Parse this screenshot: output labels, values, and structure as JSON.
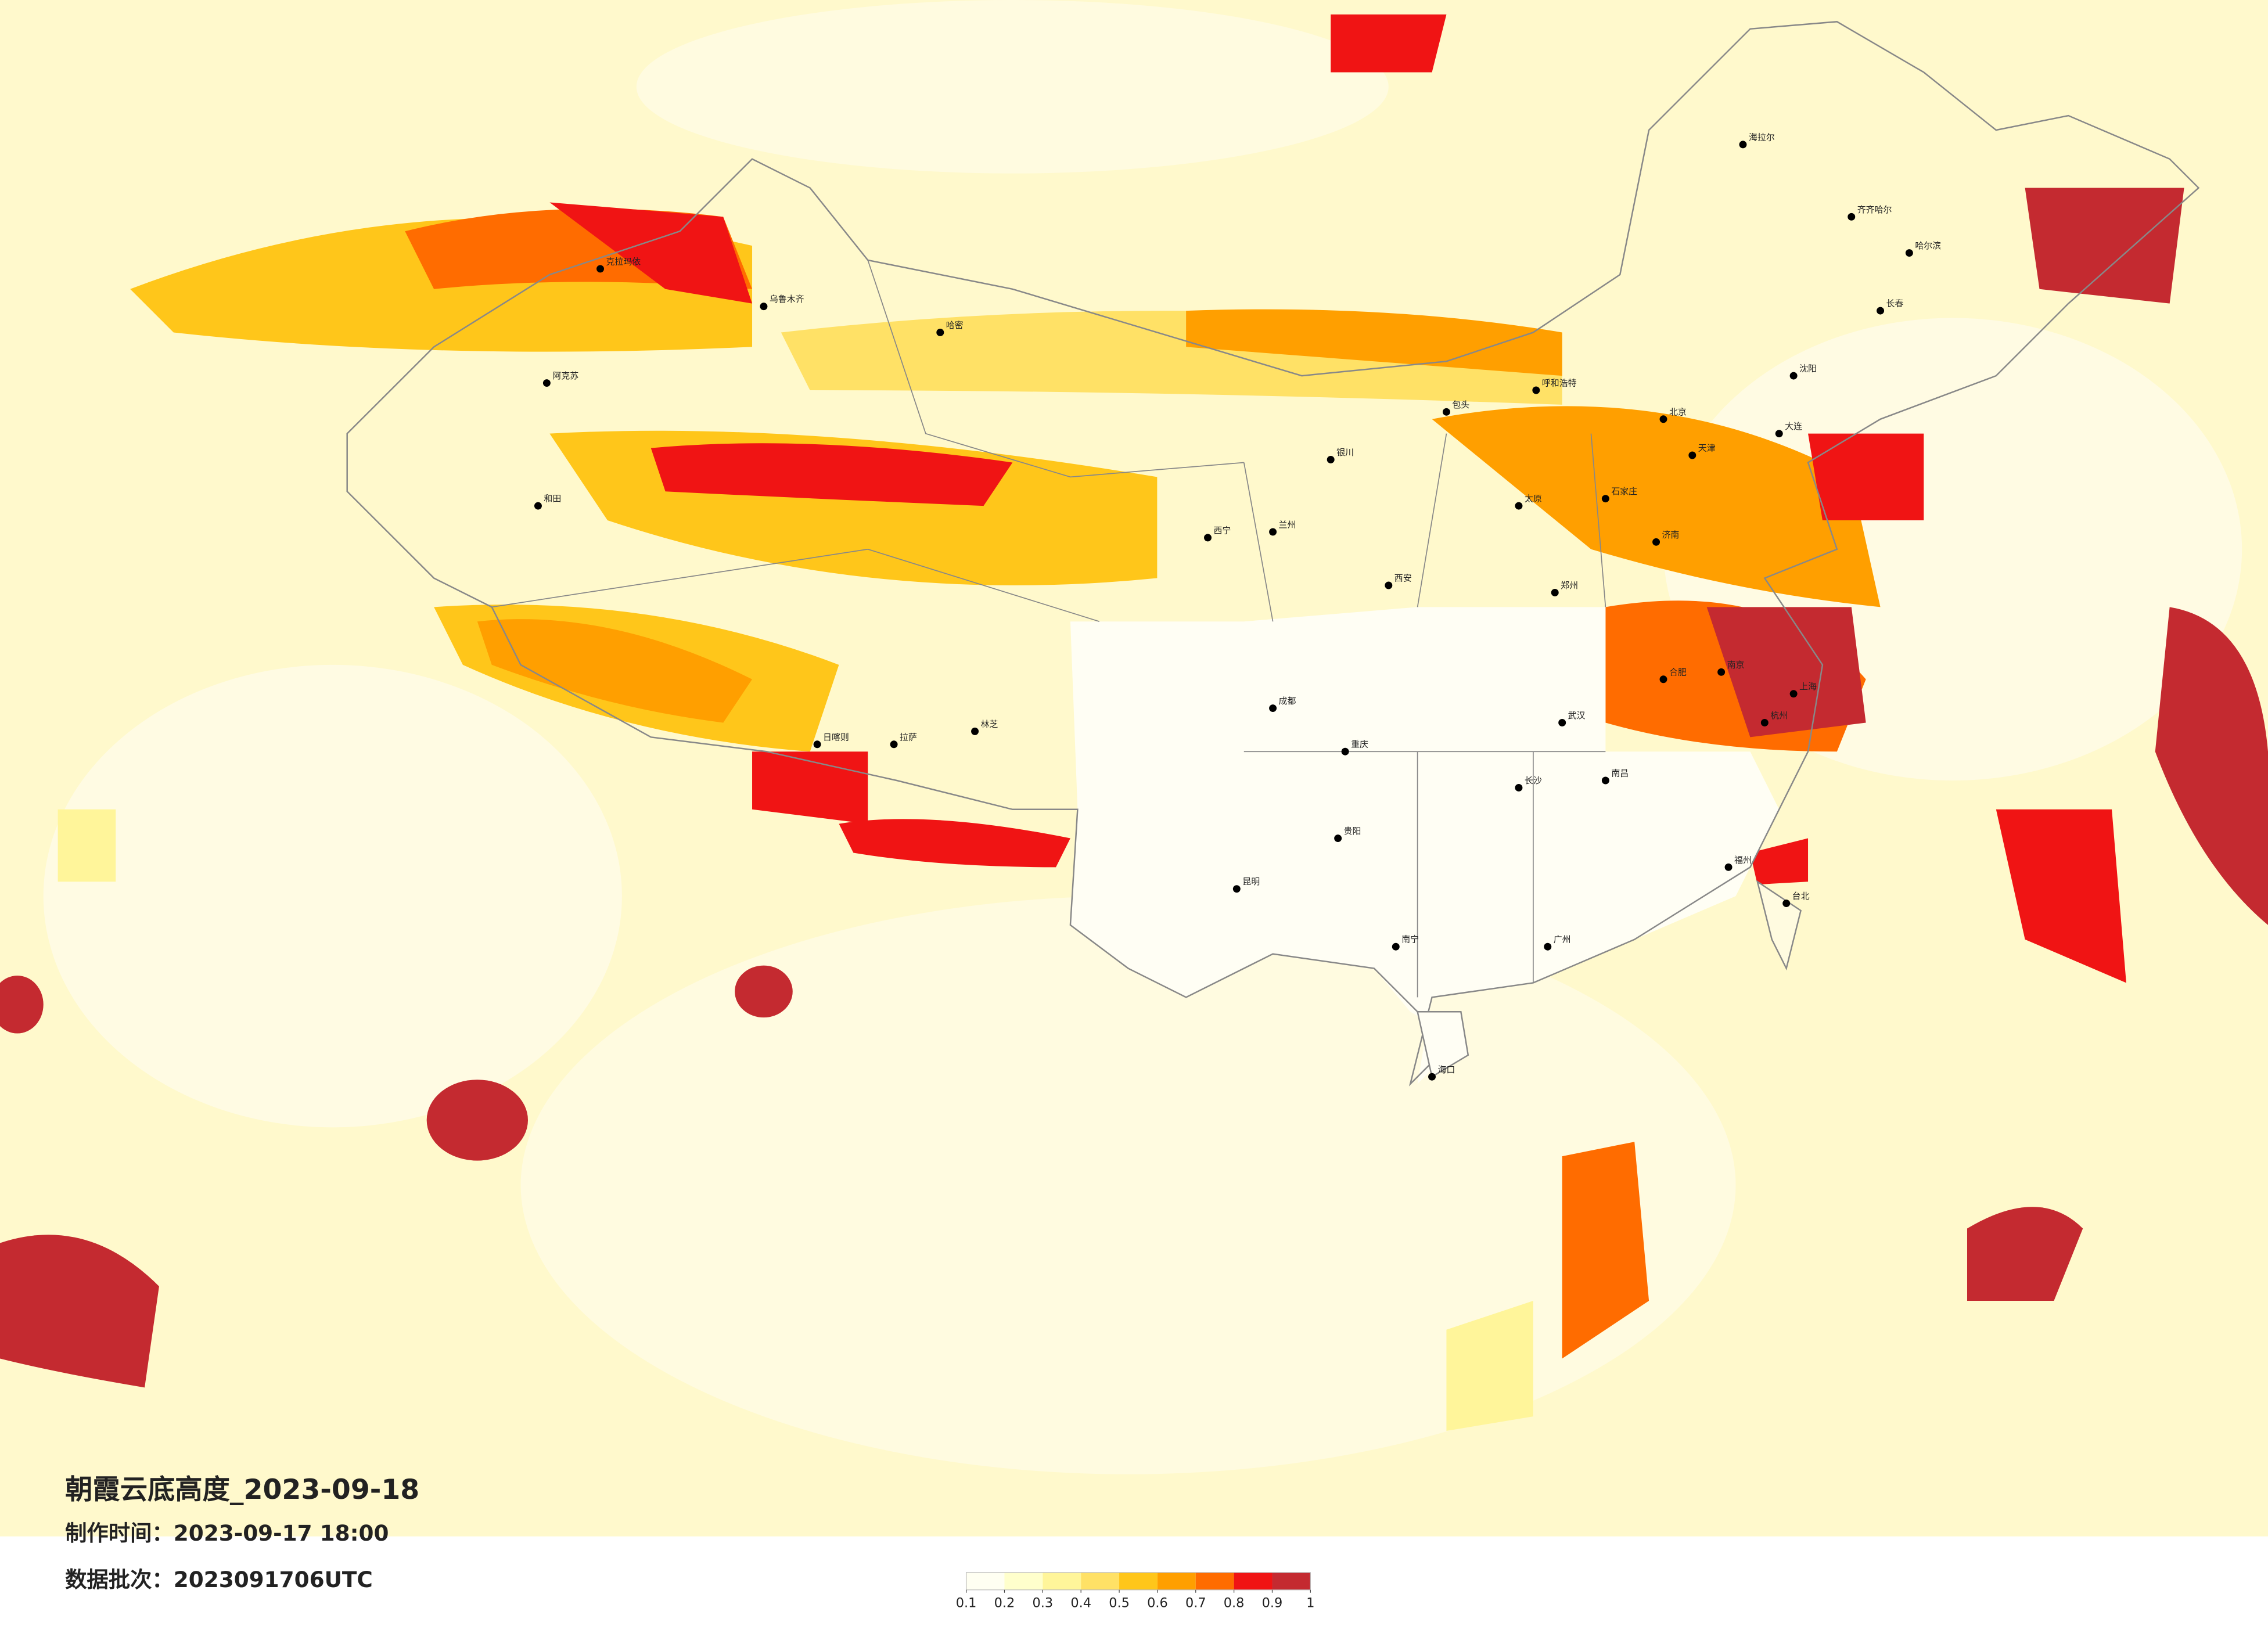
{
  "title": "朝霞云底高度_2023-09-18",
  "production_time": {
    "label": "制作时间：",
    "value": "2023-09-17 18:00"
  },
  "batch": {
    "label": "数据批次：",
    "value": "2023091706UTC"
  },
  "legend": {
    "colors": [
      "#fffff2",
      "#ffffcc",
      "#fff59a",
      "#ffe166",
      "#ffc61a",
      "#ff9f00",
      "#ff6c00",
      "#f01414",
      "#c42a30"
    ],
    "ticks": [
      0.1,
      0.2,
      0.3,
      0.4,
      0.5,
      0.6,
      0.7,
      0.8,
      0.9,
      1
    ]
  },
  "cities": [
    "乌鲁木齐",
    "克拉玛依",
    "阿克苏",
    "和田",
    "哈密",
    "拉萨",
    "日喀则",
    "林芝",
    "西宁",
    "兰州",
    "银川",
    "呼和浩特",
    "包头",
    "北京",
    "天津",
    "石家庄",
    "太原",
    "济南",
    "郑州",
    "西安",
    "成都",
    "重庆",
    "贵阳",
    "昆明",
    "南宁",
    "广州",
    "海口",
    "长沙",
    "武汉",
    "南昌",
    "合肥",
    "南京",
    "上海",
    "杭州",
    "福州",
    "台北",
    "沈阳",
    "长春",
    "哈尔滨",
    "齐齐哈尔",
    "海拉尔",
    "大连"
  ]
}
